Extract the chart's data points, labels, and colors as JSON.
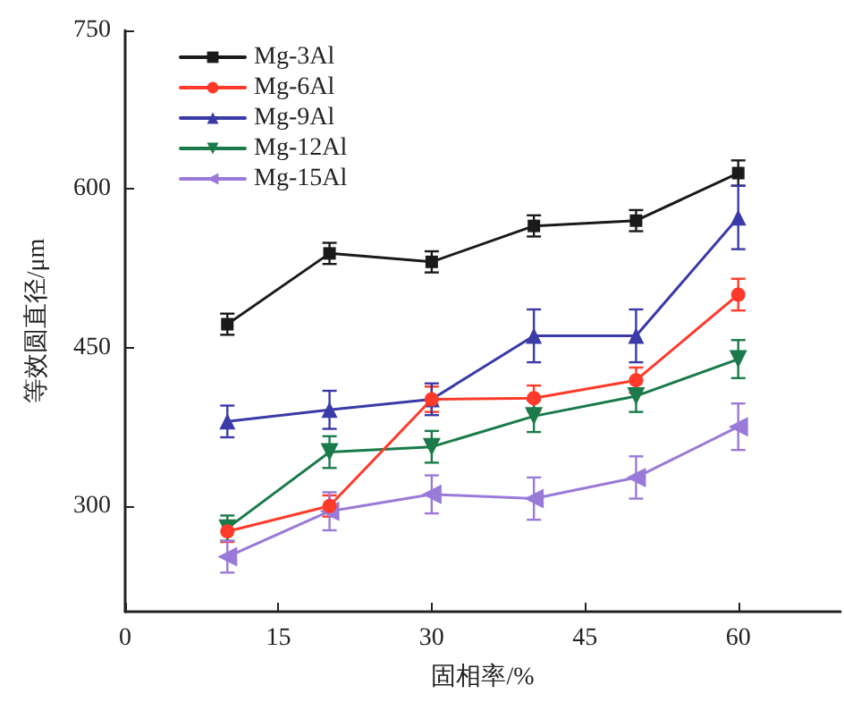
{
  "chart_data": {
    "type": "line",
    "xlabel": "固相率/%",
    "ylabel": "等效圆直径/μm",
    "x": [
      10,
      20,
      30,
      40,
      50,
      60
    ],
    "xlim": [
      0,
      70
    ],
    "xticks": [
      0,
      15,
      30,
      45,
      60
    ],
    "ylim": [
      200,
      750
    ],
    "yticks": [
      300,
      450,
      600,
      750
    ],
    "grid": false,
    "legend": "top left",
    "line_style": "solid",
    "series": [
      {
        "name": "Mg-3Al",
        "color": "#1a1a1a",
        "marker": "square",
        "values": [
          472,
          539,
          531,
          565,
          570,
          615
        ],
        "errors": [
          10,
          10,
          10,
          10,
          10,
          12
        ]
      },
      {
        "name": "Mg-6Al",
        "color": "#ff3a2a",
        "marker": "circle",
        "values": [
          276,
          300,
          401,
          402,
          419,
          500
        ],
        "errors": [
          10,
          10,
          12,
          12,
          12,
          15
        ]
      },
      {
        "name": "Mg-9Al",
        "color": "#3a3aa8",
        "marker": "triangle",
        "values": [
          380,
          391,
          401,
          461,
          461,
          573
        ],
        "errors": [
          15,
          18,
          15,
          25,
          25,
          30
        ]
      },
      {
        "name": "Mg-12Al",
        "color": "#1a7a4a",
        "marker": "triangle-down",
        "values": [
          279,
          351,
          356,
          385,
          404,
          439
        ],
        "errors": [
          12,
          15,
          15,
          15,
          15,
          18
        ]
      },
      {
        "name": "Mg-15Al",
        "color": "#9a7ad8",
        "marker": "triangle-left",
        "values": [
          252,
          295,
          311,
          307,
          327,
          375
        ],
        "errors": [
          15,
          18,
          18,
          20,
          20,
          22
        ]
      }
    ]
  }
}
